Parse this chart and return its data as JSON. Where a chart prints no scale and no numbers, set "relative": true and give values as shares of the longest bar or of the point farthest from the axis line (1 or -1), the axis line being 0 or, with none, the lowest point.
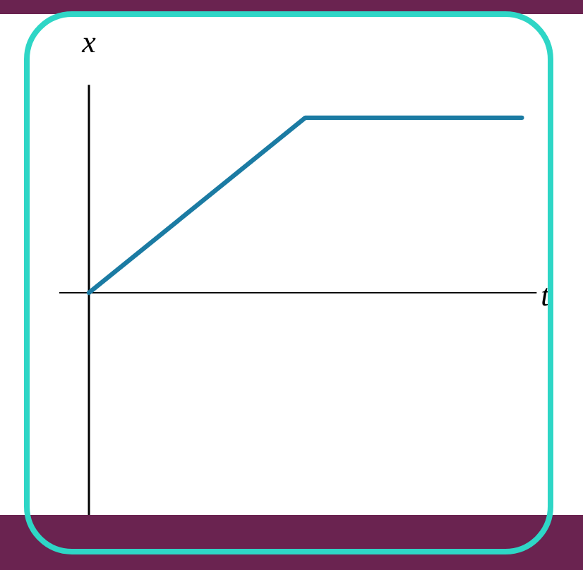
{
  "chart_data": {
    "type": "line",
    "xlabel": "t",
    "ylabel": "x",
    "relative": true,
    "categories": [
      null,
      null,
      null
    ],
    "series": [
      {
        "color": "#1b7ba3",
        "values": [
          0,
          1,
          1
        ]
      }
    ]
  }
}
